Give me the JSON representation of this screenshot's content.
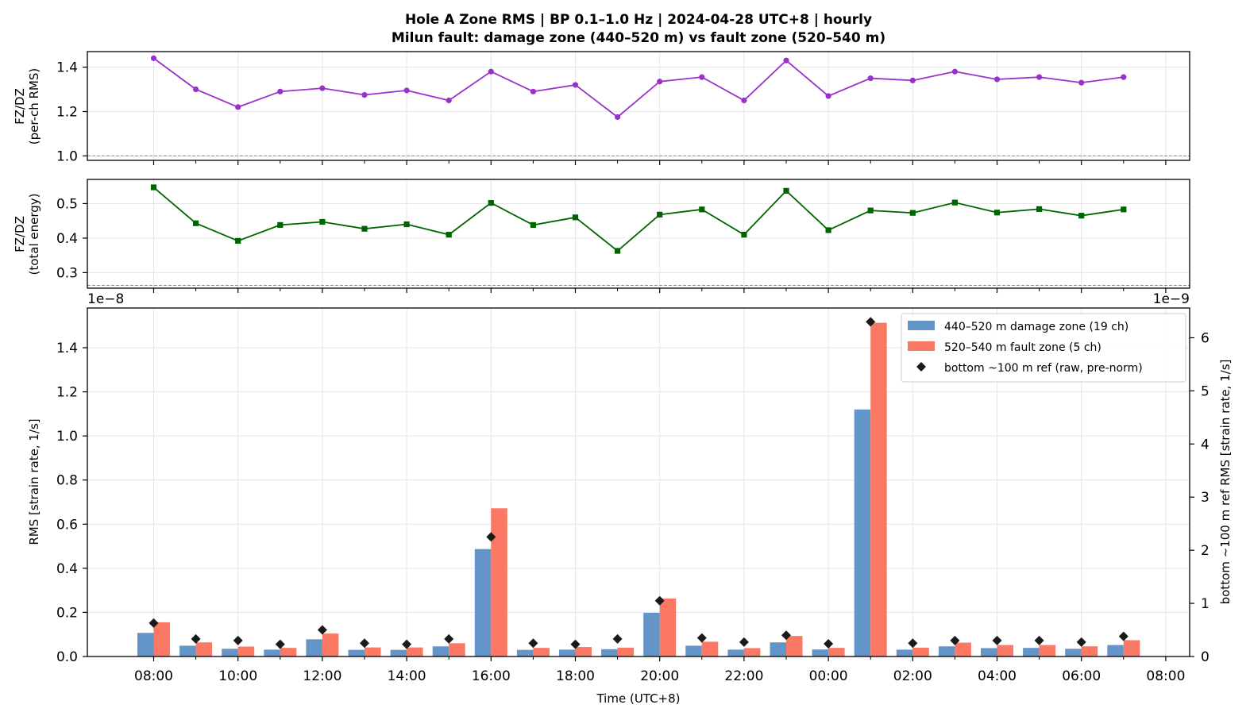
{
  "title": {
    "line1": "Hole A Zone RMS  |  BP 0.1–1.0 Hz  |  2024-04-28 UTC+8  |  hourly",
    "line2": "Milun fault: damage zone (440–520 m) vs fault zone (520–540 m)"
  },
  "chart_data": [
    {
      "type": "line",
      "ylabel": "FZ/DZ",
      "ylabel_sub": "(per-ch RMS)",
      "ylim": [
        0.98,
        1.47
      ],
      "yticks": [
        1.0,
        1.2,
        1.4
      ],
      "ytick_labels": [
        "1.0",
        "1.2",
        "1.4"
      ],
      "reference_line": 1.0,
      "grid": true,
      "color": "#9932CC",
      "marker": "circle",
      "x": [
        "08:00",
        "09:00",
        "10:00",
        "11:00",
        "12:00",
        "13:00",
        "14:00",
        "15:00",
        "16:00",
        "17:00",
        "18:00",
        "19:00",
        "20:00",
        "21:00",
        "22:00",
        "23:00",
        "00:00",
        "01:00",
        "02:00",
        "03:00",
        "04:00",
        "05:00",
        "06:00",
        "07:00"
      ],
      "values": [
        1.44,
        1.3,
        1.22,
        1.29,
        1.305,
        1.275,
        1.295,
        1.25,
        1.38,
        1.29,
        1.32,
        1.175,
        1.335,
        1.355,
        1.25,
        1.43,
        1.27,
        1.35,
        1.34,
        1.38,
        1.345,
        1.355,
        1.33,
        1.355
      ]
    },
    {
      "type": "line",
      "ylabel": "FZ/DZ",
      "ylabel_sub": "(total energy)",
      "ylim": [
        0.255,
        0.57
      ],
      "yticks": [
        0.3,
        0.4,
        0.5
      ],
      "ytick_labels": [
        "0.3",
        "0.4",
        "0.5"
      ],
      "reference_line": 0.263,
      "grid": true,
      "color": "#006400",
      "marker": "square",
      "x": [
        "08:00",
        "09:00",
        "10:00",
        "11:00",
        "12:00",
        "13:00",
        "14:00",
        "15:00",
        "16:00",
        "17:00",
        "18:00",
        "19:00",
        "20:00",
        "21:00",
        "22:00",
        "23:00",
        "00:00",
        "01:00",
        "02:00",
        "03:00",
        "04:00",
        "05:00",
        "06:00",
        "07:00"
      ],
      "values": [
        0.547,
        0.443,
        0.392,
        0.438,
        0.447,
        0.427,
        0.44,
        0.41,
        0.502,
        0.438,
        0.46,
        0.363,
        0.468,
        0.483,
        0.41,
        0.537,
        0.423,
        0.48,
        0.473,
        0.503,
        0.474,
        0.484,
        0.465,
        0.483
      ]
    },
    {
      "type": "bar",
      "xlabel": "Time (UTC+8)",
      "ylabel": "RMS  [strain rate, 1/s]",
      "ylabel_right": "bottom ~100 m ref RMS  [strain rate, 1/s]",
      "offset_left": "1e−8",
      "offset_right": "1e−9",
      "ylim": [
        0,
        1.58
      ],
      "yticks": [
        0.0,
        0.2,
        0.4,
        0.6,
        0.8,
        1.0,
        1.2,
        1.4
      ],
      "ytick_labels": [
        "0.0",
        "0.2",
        "0.4",
        "0.6",
        "0.8",
        "1.0",
        "1.2",
        "1.4"
      ],
      "ylim_right": [
        0,
        6.56
      ],
      "yticks_right": [
        0,
        1,
        2,
        3,
        4,
        5,
        6
      ],
      "ytick_labels_right": [
        "0",
        "1",
        "2",
        "3",
        "4",
        "5",
        "6"
      ],
      "xticks": [
        "08:00",
        "10:00",
        "12:00",
        "14:00",
        "16:00",
        "18:00",
        "20:00",
        "22:00",
        "00:00",
        "02:00",
        "04:00",
        "06:00",
        "08:00"
      ],
      "grid": true,
      "legend_position": "top-right",
      "categories": [
        "08:00",
        "09:00",
        "10:00",
        "11:00",
        "12:00",
        "13:00",
        "14:00",
        "15:00",
        "16:00",
        "17:00",
        "18:00",
        "19:00",
        "20:00",
        "21:00",
        "22:00",
        "23:00",
        "00:00",
        "01:00",
        "02:00",
        "03:00",
        "04:00",
        "05:00",
        "06:00",
        "07:00"
      ],
      "series": [
        {
          "name": "440–520 m  damage zone (19 ch)",
          "color": "#6495C8",
          "axis": "left",
          "values": [
            0.107,
            0.049,
            0.035,
            0.031,
            0.078,
            0.03,
            0.03,
            0.046,
            0.487,
            0.03,
            0.031,
            0.033,
            0.198,
            0.049,
            0.031,
            0.064,
            0.032,
            1.12,
            0.031,
            0.046,
            0.038,
            0.039,
            0.035,
            0.052
          ]
        },
        {
          "name": "520–540 m  fault zone (5 ch)",
          "color": "#FA7864",
          "axis": "left",
          "values": [
            0.155,
            0.064,
            0.045,
            0.039,
            0.104,
            0.041,
            0.041,
            0.06,
            0.672,
            0.039,
            0.043,
            0.04,
            0.263,
            0.067,
            0.038,
            0.093,
            0.039,
            1.513,
            0.04,
            0.063,
            0.052,
            0.052,
            0.046,
            0.074
          ]
        },
        {
          "name": "bottom ~100 m ref (raw, pre-norm)",
          "color": "#1a1a1a",
          "axis": "right",
          "marker": "diamond",
          "values": [
            0.63,
            0.33,
            0.3,
            0.23,
            0.5,
            0.25,
            0.23,
            0.33,
            2.25,
            0.25,
            0.23,
            0.33,
            1.05,
            0.35,
            0.27,
            0.4,
            0.24,
            6.3,
            0.25,
            0.3,
            0.3,
            0.3,
            0.27,
            0.38
          ]
        }
      ]
    }
  ]
}
